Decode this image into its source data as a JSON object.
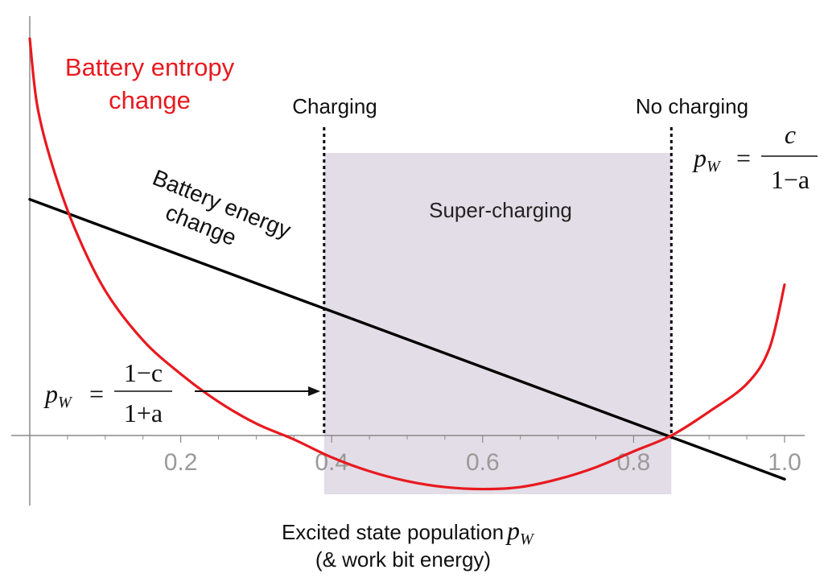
{
  "chart_data": {
    "type": "line",
    "x_axis": {
      "label_line1": "Excited state population",
      "label_symbol": "p",
      "label_subscript": "W",
      "label_line2": "(& work bit energy)",
      "xlim": [
        0,
        1.0
      ],
      "tick_labels": [
        {
          "x": 0.2,
          "text": "0.2"
        },
        {
          "x": 0.4,
          "text": "0.4"
        },
        {
          "x": 0.6,
          "text": "0.6"
        },
        {
          "x": 0.8,
          "text": "0.8"
        },
        {
          "x": 1.0,
          "text": "1.0"
        }
      ],
      "minor_ticks": [
        0.05,
        0.1,
        0.15,
        0.25,
        0.3,
        0.35,
        0.45,
        0.5,
        0.55,
        0.65,
        0.7,
        0.75,
        0.85,
        0.9,
        0.95
      ]
    },
    "y_axis": {
      "ylim": [
        -0.22,
        1.0
      ]
    },
    "series": [
      {
        "name_line1": "Battery entropy",
        "name_line2": "change",
        "color": "#e8191f",
        "points": [
          [
            0.0,
            1.0
          ],
          [
            0.01,
            0.83
          ],
          [
            0.03,
            0.68
          ],
          [
            0.06,
            0.52
          ],
          [
            0.1,
            0.365
          ],
          [
            0.15,
            0.24
          ],
          [
            0.2,
            0.155
          ],
          [
            0.25,
            0.085
          ],
          [
            0.3,
            0.03
          ],
          [
            0.35,
            -0.01
          ],
          [
            0.4,
            -0.055
          ],
          [
            0.45,
            -0.09
          ],
          [
            0.5,
            -0.115
          ],
          [
            0.55,
            -0.13
          ],
          [
            0.6,
            -0.135
          ],
          [
            0.65,
            -0.13
          ],
          [
            0.7,
            -0.11
          ],
          [
            0.75,
            -0.08
          ],
          [
            0.8,
            -0.04
          ],
          [
            0.85,
            0.0
          ],
          [
            0.9,
            0.06
          ],
          [
            0.95,
            0.13
          ],
          [
            0.98,
            0.22
          ],
          [
            1.0,
            0.38
          ]
        ]
      },
      {
        "name_line1": "Battery energy",
        "name_line2": "change",
        "color": "#000000",
        "points": [
          [
            0.0,
            0.595
          ],
          [
            1.0,
            -0.11
          ]
        ]
      }
    ],
    "region": {
      "label": "Super-charging",
      "x_start": 0.39,
      "x_end": 0.85,
      "fill": "#e2dde6"
    },
    "markers": [
      {
        "x": 0.39,
        "label": "Charging"
      },
      {
        "x": 0.85,
        "label": "No charging"
      }
    ],
    "annotations": {
      "left_formula": {
        "lhs_symbol": "p",
        "lhs_subscript": "W",
        "equals": "=",
        "numerator": "1−c",
        "denominator": "1+a"
      },
      "right_formula": {
        "lhs_symbol": "p",
        "lhs_subscript": "W",
        "equals": "=",
        "numerator": "c",
        "denominator": "1−a"
      }
    },
    "grid": false
  }
}
